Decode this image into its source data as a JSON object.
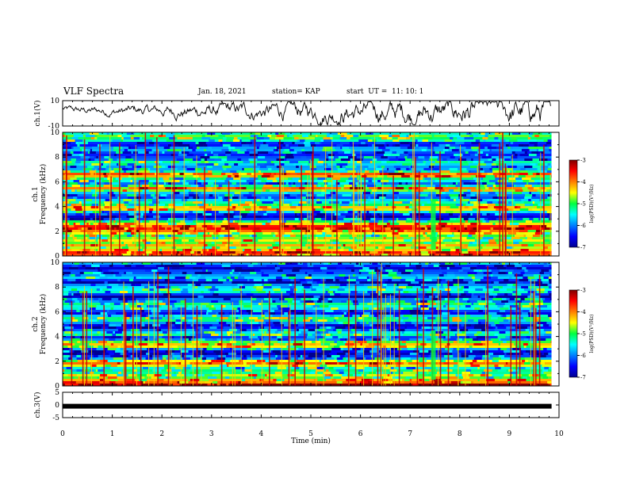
{
  "header": {
    "title": "VLF Spectra",
    "date": "Jan. 18, 2021",
    "station": "station= KAP",
    "start": "start  UT =  11: 10: 1"
  },
  "chart_data": [
    {
      "type": "line",
      "title": "",
      "ylabel": "ch.1(V)",
      "ylim": [
        -10,
        10
      ],
      "yticks": [
        "10",
        "-10"
      ],
      "xlim": [
        0,
        10
      ],
      "description_series": "voltage waveform",
      "series": [
        {
          "values_sample": [
            0,
            1,
            -1,
            2,
            -3,
            1,
            0,
            2,
            -2,
            3,
            -4,
            2,
            1,
            3,
            -2,
            4,
            -5,
            3,
            2,
            -3
          ]
        }
      ]
    },
    {
      "type": "heatmap",
      "ylabel": "ch.1\nFrequency (kHz)",
      "ylim": [
        0,
        10
      ],
      "xlim": [
        0,
        10
      ],
      "yticks": [
        "0",
        "2",
        "4",
        "6",
        "8",
        "10"
      ],
      "colorbar": {
        "label": "log(PSD)(V²/Hz)",
        "range": [
          -7,
          -3
        ],
        "ticks": [
          "-3",
          "-4",
          "-5",
          "-6",
          "-7"
        ]
      },
      "levels": [
        {
          "f": 0.2,
          "v": -3.5
        },
        {
          "f": 1.0,
          "v": -4.8
        },
        {
          "f": 1.8,
          "v": -5.0
        },
        {
          "f": 2.2,
          "v": -3.2
        },
        {
          "f": 2.6,
          "v": -4.2
        },
        {
          "f": 3.0,
          "v": -6.6
        },
        {
          "f": 3.5,
          "v": -6.2
        },
        {
          "f": 3.8,
          "v": -3.6
        },
        {
          "f": 4.4,
          "v": -5.6
        },
        {
          "f": 5.0,
          "v": -6.3
        },
        {
          "f": 5.4,
          "v": -3.8
        },
        {
          "f": 5.8,
          "v": -6.4
        },
        {
          "f": 6.2,
          "v": -5.0
        },
        {
          "f": 6.6,
          "v": -3.9
        },
        {
          "f": 7.1,
          "v": -6.6
        },
        {
          "f": 7.6,
          "v": -5.2
        },
        {
          "f": 8.0,
          "v": -6.5
        },
        {
          "f": 8.6,
          "v": -5.4
        },
        {
          "f": 9.0,
          "v": -6.5
        },
        {
          "f": 9.5,
          "v": -5.0
        },
        {
          "f": 10.0,
          "v": -5.2
        }
      ]
    },
    {
      "type": "heatmap",
      "ylabel": "ch.2\nFrequency (kHz)",
      "ylim": [
        0,
        10
      ],
      "xlim": [
        0,
        10
      ],
      "yticks": [
        "0",
        "2",
        "4",
        "6",
        "8",
        "10"
      ],
      "colorbar": {
        "label": "log(PSD)(V²/Hz)",
        "range": [
          -7,
          -3
        ],
        "ticks": [
          "-3",
          "-4",
          "-5",
          "-6",
          "-7"
        ]
      },
      "levels": [
        {
          "f": 0.2,
          "v": -3.4
        },
        {
          "f": 0.8,
          "v": -5.0
        },
        {
          "f": 1.4,
          "v": -5.3
        },
        {
          "f": 1.9,
          "v": -3.8
        },
        {
          "f": 2.4,
          "v": -6.4
        },
        {
          "f": 3.0,
          "v": -6.2
        },
        {
          "f": 3.3,
          "v": -3.9
        },
        {
          "f": 3.8,
          "v": -6.5
        },
        {
          "f": 4.3,
          "v": -5.3
        },
        {
          "f": 4.9,
          "v": -6.4
        },
        {
          "f": 5.4,
          "v": -5.4
        },
        {
          "f": 6.0,
          "v": -6.4
        },
        {
          "f": 6.6,
          "v": -5.3
        },
        {
          "f": 7.2,
          "v": -6.6
        },
        {
          "f": 7.8,
          "v": -5.1
        },
        {
          "f": 8.4,
          "v": -6.6
        },
        {
          "f": 9.0,
          "v": -5.5
        },
        {
          "f": 9.5,
          "v": -6.6
        },
        {
          "f": 10.0,
          "v": -5.5
        }
      ]
    },
    {
      "type": "line",
      "ylabel": "ch.3(V)",
      "ylim": [
        -5,
        5
      ],
      "yticks": [
        "5",
        "0",
        "-5"
      ],
      "xlim": [
        0,
        10
      ],
      "xlabel": "Time (min)",
      "xticks": [
        "0",
        "1",
        "2",
        "3",
        "4",
        "5",
        "6",
        "7",
        "8",
        "9",
        "10"
      ],
      "series": [
        {
          "value": -0.5,
          "data_end": 9.85
        }
      ]
    }
  ]
}
